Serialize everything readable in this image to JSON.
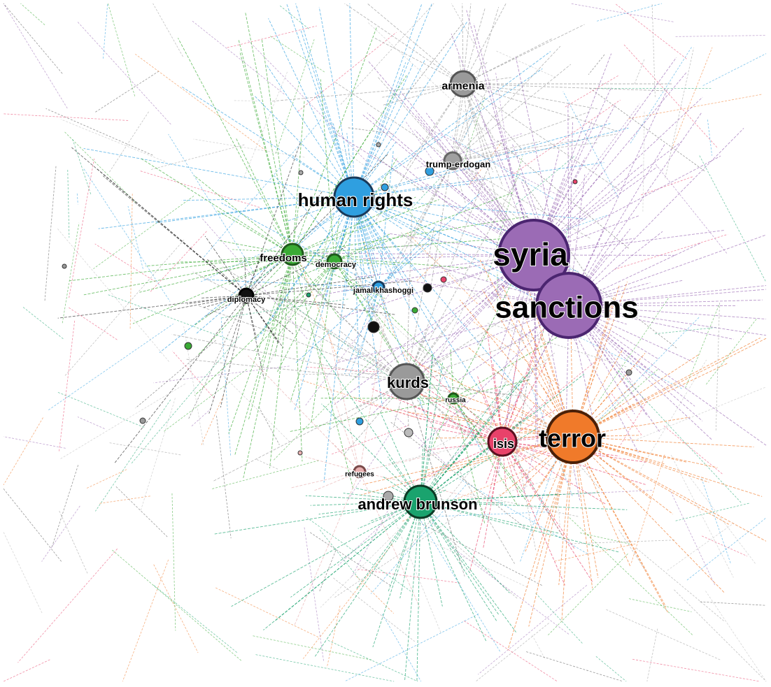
{
  "nodes": [
    {
      "label": "armenia"
    },
    {
      "label": "trump-erdogan"
    },
    {
      "label": "human rights"
    },
    {
      "label": "syria"
    },
    {
      "label": "sanctions"
    },
    {
      "label": "freedoms"
    },
    {
      "label": "democracy"
    },
    {
      "label": "jamal khashoggi"
    },
    {
      "label": "diplomacy"
    },
    {
      "label": "kurds"
    },
    {
      "label": "russia"
    },
    {
      "label": "isis"
    },
    {
      "label": "terror"
    },
    {
      "label": "refugees"
    },
    {
      "label": "andrew brunson"
    }
  ]
}
